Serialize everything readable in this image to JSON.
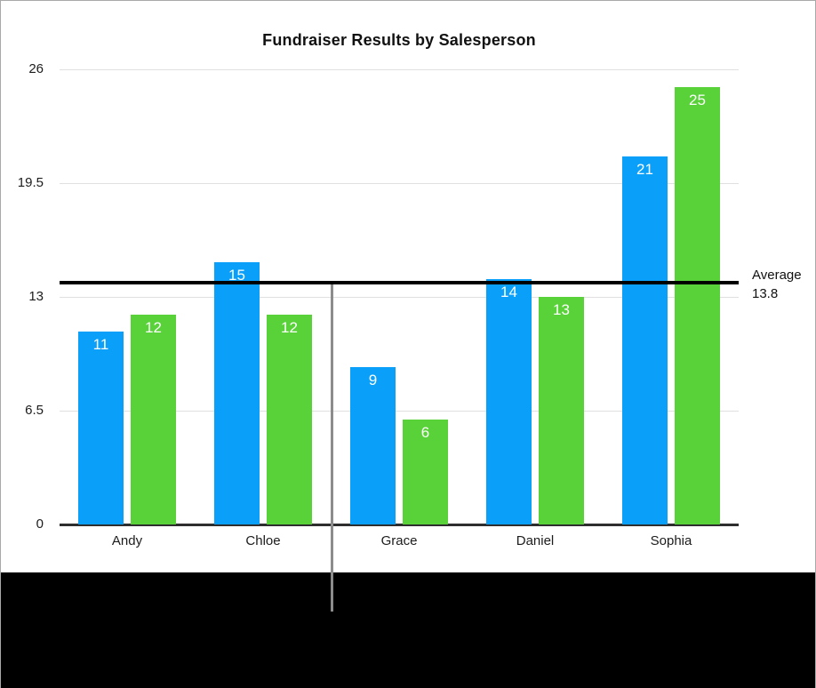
{
  "chart_data": {
    "type": "bar",
    "title": "Fundraiser Results by Salesperson",
    "categories": [
      "Andy",
      "Chloe",
      "Grace",
      "Daniel",
      "Sophia"
    ],
    "series": [
      {
        "name": "series-blue",
        "color": "#0aa0fa",
        "values": [
          11,
          15,
          9,
          14,
          21
        ]
      },
      {
        "name": "series-green",
        "color": "#59d139",
        "values": [
          12,
          12,
          6,
          13,
          25
        ]
      }
    ],
    "y_ticks": [
      0,
      6.5,
      13,
      19.5,
      26
    ],
    "ylim": [
      0,
      26
    ],
    "grid": true,
    "legend": "none",
    "data_labels": true,
    "average_line": {
      "label": "Average",
      "value_label": "13.8",
      "value": 13.8,
      "color": "#000000"
    },
    "overlays": {
      "pointer_line_present": true,
      "pointer_line_color": "#8c8c8c",
      "pointer_line_category": "Grace"
    }
  }
}
